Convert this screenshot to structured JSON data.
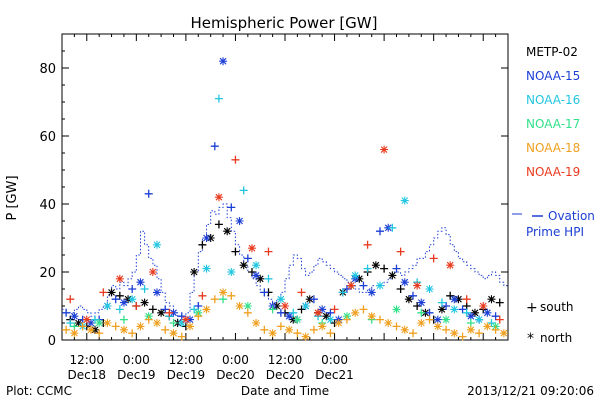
{
  "chart_data": {
    "type": "scatter",
    "title": "Hemispheric Power [GW]",
    "ylabel": "P [GW]",
    "xlabel": "Date and Time",
    "ylim": [
      0,
      90
    ],
    "yticks": [
      0,
      20,
      40,
      60,
      80
    ],
    "xlim_hours": [
      0,
      108
    ],
    "xticks": [
      {
        "time": "12:00",
        "date": "Dec18",
        "x": 6
      },
      {
        "time": "0:00",
        "date": "Dec19",
        "x": 18
      },
      {
        "time": "12:00",
        "date": "Dec19",
        "x": 30
      },
      {
        "time": "0:00",
        "date": "Dec20",
        "x": 42
      },
      {
        "time": "12:00",
        "date": "Dec20",
        "x": 54
      },
      {
        "time": "0:00",
        "date": "Dec21",
        "x": 66
      }
    ],
    "footer_left": "Plot: CCMC",
    "footer_right": "2013/12/21 09:20:06",
    "markers": {
      "south_symbol": "+",
      "south_label": "south",
      "north_symbol": "*",
      "north_label": "north"
    },
    "ovation": {
      "name_line1": "Ovation",
      "name_line2": "Prime HPI",
      "color": "#1c3fd6",
      "x": [
        0,
        1,
        2,
        3,
        4,
        5,
        6,
        7,
        8,
        9,
        10,
        11,
        12,
        13,
        14,
        15,
        16,
        17,
        18,
        19,
        20,
        21,
        22,
        23,
        24,
        25,
        26,
        27,
        28,
        29,
        30,
        31,
        32,
        33,
        34,
        35,
        36,
        37,
        38,
        39,
        40,
        41,
        42,
        43,
        44,
        45,
        46,
        47,
        48,
        49,
        50,
        51,
        52,
        53,
        54,
        55,
        56,
        57,
        58,
        59,
        60,
        61,
        62,
        63,
        64,
        65,
        66,
        67,
        68,
        69,
        70,
        71,
        72,
        73,
        74,
        75,
        76,
        77,
        78,
        79,
        80,
        81,
        82,
        83,
        84,
        85,
        86,
        87,
        88,
        89,
        90,
        91,
        92,
        93,
        94,
        95,
        96,
        97,
        98,
        99,
        100,
        101,
        102,
        103,
        104,
        105,
        106,
        107
      ],
      "y": [
        9,
        8,
        8,
        9,
        10,
        9,
        8,
        7,
        8,
        9,
        10,
        13,
        16,
        15,
        17,
        16,
        18,
        20,
        25,
        32,
        28,
        24,
        22,
        18,
        14,
        11,
        10,
        8,
        6,
        5,
        8,
        14,
        20,
        26,
        30,
        34,
        38,
        37,
        39,
        40,
        36,
        32,
        28,
        25,
        22,
        20,
        18,
        16,
        14,
        13,
        12,
        11,
        12,
        14,
        18,
        22,
        25,
        24,
        21,
        19,
        20,
        22,
        24,
        23,
        22,
        21,
        20,
        19,
        18,
        17,
        16,
        15,
        14,
        14,
        15,
        16,
        16,
        16,
        17,
        18,
        20,
        20,
        19,
        20,
        21,
        22,
        24,
        24,
        26,
        28,
        30,
        32,
        33,
        31,
        28,
        26,
        24,
        23,
        22,
        21,
        20,
        19,
        18,
        19,
        20,
        19,
        17,
        16
      ]
    },
    "series": [
      {
        "name": "METP-02",
        "color": "#000000",
        "x": [
          2,
          4,
          6,
          8,
          10,
          12,
          14,
          16,
          18,
          20,
          22,
          24,
          26,
          28,
          30,
          32,
          34,
          36,
          38,
          40,
          42,
          44,
          46,
          48,
          50,
          52,
          54,
          56,
          58,
          60,
          62,
          64,
          66,
          68,
          70,
          72,
          74,
          76,
          78,
          80,
          82,
          84,
          86,
          88,
          90,
          92,
          94,
          96,
          98,
          100,
          102,
          104,
          106
        ],
        "y": [
          6,
          5,
          4,
          3,
          5,
          14,
          13,
          12,
          10,
          11,
          9,
          8,
          7,
          5,
          4,
          20,
          28,
          30,
          34,
          32,
          26,
          22,
          20,
          18,
          14,
          10,
          8,
          6,
          9,
          12,
          8,
          7,
          5,
          14,
          16,
          18,
          20,
          22,
          21,
          19,
          15,
          12,
          10,
          8,
          6,
          9,
          13,
          12,
          10,
          8,
          9,
          12,
          11
        ]
      },
      {
        "name": "NOAA-15",
        "color": "#1c3fd6",
        "x": [
          1,
          3,
          5,
          7,
          9,
          11,
          13,
          15,
          17,
          19,
          21,
          23,
          25,
          27,
          29,
          31,
          33,
          35,
          37,
          39,
          41,
          43,
          45,
          47,
          49,
          51,
          53,
          55,
          57,
          59,
          61,
          63,
          65,
          67,
          69,
          71,
          73,
          75,
          77,
          79,
          81,
          83,
          85,
          87,
          89,
          91,
          93,
          95,
          97,
          99,
          101,
          103,
          105
        ],
        "y": [
          8,
          7,
          6,
          5,
          6,
          10,
          12,
          11,
          15,
          17,
          43,
          14,
          9,
          8,
          7,
          6,
          10,
          30,
          57,
          82,
          39,
          35,
          24,
          19,
          14,
          10,
          8,
          7,
          6,
          10,
          12,
          9,
          8,
          6,
          15,
          18,
          16,
          14,
          32,
          33,
          21,
          17,
          13,
          11,
          8,
          6,
          10,
          12,
          9,
          7,
          6,
          8,
          7
        ]
      },
      {
        "name": "NOAA-16",
        "color": "#22c6e0",
        "x": [
          2,
          5,
          8,
          11,
          14,
          17,
          20,
          23,
          26,
          29,
          32,
          35,
          38,
          41,
          44,
          47,
          50,
          53,
          56,
          59,
          62,
          65,
          68,
          71,
          74,
          77,
          80,
          83,
          86,
          89,
          92,
          95,
          98,
          101,
          104
        ],
        "y": [
          5,
          4,
          6,
          10,
          9,
          12,
          15,
          28,
          7,
          5,
          9,
          21,
          71,
          20,
          44,
          22,
          18,
          12,
          8,
          10,
          7,
          6,
          14,
          19,
          21,
          16,
          33,
          41,
          17,
          15,
          11,
          9,
          8,
          6,
          5
        ]
      },
      {
        "name": "NOAA-17",
        "color": "#33e08a",
        "x": [
          3,
          9,
          15,
          21,
          27,
          33,
          39,
          45,
          51,
          57,
          63,
          69,
          75,
          81,
          87,
          93,
          99,
          105
        ],
        "y": [
          4,
          5,
          6,
          7,
          5,
          8,
          12,
          10,
          9,
          6,
          5,
          7,
          6,
          9,
          8,
          6,
          5,
          4
        ]
      },
      {
        "name": "NOAA-18",
        "color": "#f0a020",
        "x": [
          1,
          3,
          5,
          7,
          9,
          11,
          13,
          15,
          17,
          19,
          21,
          23,
          25,
          27,
          29,
          31,
          33,
          35,
          37,
          39,
          41,
          43,
          45,
          47,
          49,
          51,
          53,
          55,
          57,
          59,
          61,
          63,
          65,
          67,
          69,
          71,
          73,
          75,
          77,
          79,
          81,
          83,
          85,
          87,
          89,
          91,
          93,
          95,
          97,
          99,
          101,
          103,
          105,
          107
        ],
        "y": [
          3,
          2,
          4,
          3,
          2,
          5,
          4,
          3,
          2,
          4,
          6,
          5,
          3,
          2,
          1,
          4,
          7,
          9,
          12,
          14,
          13,
          10,
          8,
          5,
          3,
          2,
          4,
          3,
          2,
          1,
          3,
          4,
          2,
          5,
          6,
          8,
          9,
          7,
          6,
          5,
          4,
          3,
          2,
          5,
          6,
          4,
          3,
          2,
          1,
          3,
          2,
          4,
          3,
          2
        ]
      },
      {
        "name": "NOAA-19",
        "color": "#e83a1e",
        "x": [
          2,
          6,
          10,
          14,
          18,
          22,
          26,
          30,
          34,
          38,
          42,
          46,
          50,
          54,
          58,
          62,
          66,
          70,
          74,
          78,
          82,
          86,
          90,
          94,
          98,
          102,
          106
        ],
        "y": [
          12,
          6,
          14,
          18,
          10,
          20,
          8,
          6,
          13,
          42,
          53,
          27,
          26,
          10,
          14,
          8,
          9,
          16,
          28,
          56,
          26,
          16,
          24,
          22,
          12,
          10,
          6
        ]
      }
    ]
  }
}
